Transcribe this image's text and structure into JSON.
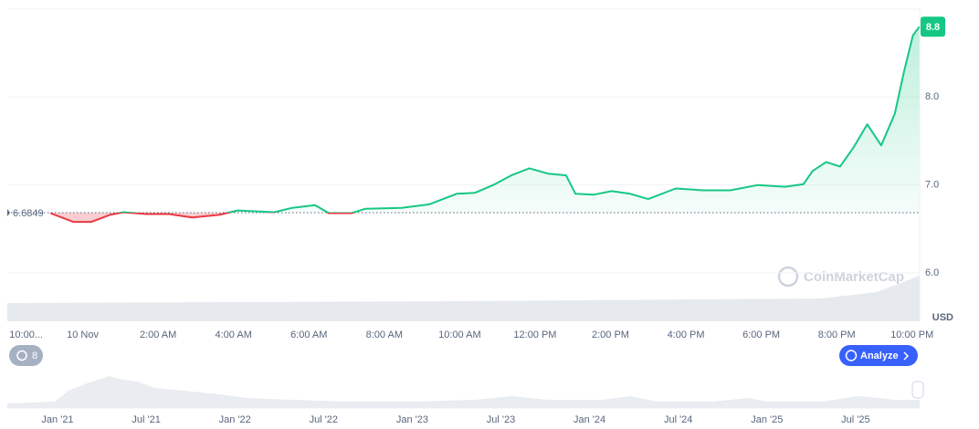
{
  "chart_data": {
    "type": "line",
    "currency": "USD",
    "watermark": "CoinMarketCap",
    "analyze_button": "Analyze",
    "history_count": 8,
    "baseline": 6.6849,
    "color": "#16c784",
    "down_color": "#ea3943",
    "xlim": [
      -2,
      22.2
    ],
    "ylim": [
      5.45,
      9.0
    ],
    "xticks": [
      {
        "value": -1.5,
        "label": "10:00..."
      },
      {
        "value": 0,
        "label": "10 Nov"
      },
      {
        "value": 2,
        "label": "2:00 AM"
      },
      {
        "value": 4,
        "label": "4:00 AM"
      },
      {
        "value": 6,
        "label": "6:00 AM"
      },
      {
        "value": 8,
        "label": "8:00 AM"
      },
      {
        "value": 10,
        "label": "10:00 AM"
      },
      {
        "value": 12,
        "label": "12:00 PM"
      },
      {
        "value": 14,
        "label": "2:00 PM"
      },
      {
        "value": 16,
        "label": "4:00 PM"
      },
      {
        "value": 18,
        "label": "6:00 PM"
      },
      {
        "value": 20,
        "label": "8:00 PM"
      },
      {
        "value": 22,
        "label": "10:00 PM"
      }
    ],
    "yticks": [
      {
        "value": 6,
        "label": "6.0"
      },
      {
        "value": 7,
        "label": "7.0"
      },
      {
        "value": 8,
        "label": "8.0"
      }
    ],
    "x": [
      -0.86,
      -0.25,
      0.23,
      0.72,
      1.08,
      1.69,
      2.29,
      2.9,
      3.62,
      4.11,
      5.08,
      5.56,
      6.16,
      6.53,
      7.13,
      7.5,
      8.46,
      9.19,
      9.92,
      10.4,
      10.89,
      11.37,
      11.85,
      12.34,
      12.82,
      13.07,
      13.55,
      14.03,
      14.52,
      15.0,
      15.73,
      16.45,
      17.18,
      17.91,
      18.63,
      19.12,
      19.36,
      19.72,
      20.09,
      20.45,
      20.81,
      21.18,
      21.54,
      21.78,
      22.02,
      22.19
    ],
    "values": [
      6.68,
      6.58,
      6.58,
      6.66,
      6.69,
      6.67,
      6.67,
      6.63,
      6.66,
      6.71,
      6.69,
      6.74,
      6.77,
      6.68,
      6.68,
      6.73,
      6.74,
      6.78,
      6.9,
      6.91,
      7.0,
      7.11,
      7.19,
      7.13,
      7.11,
      6.9,
      6.89,
      6.93,
      6.9,
      6.84,
      6.96,
      6.94,
      6.94,
      7.0,
      6.98,
      7.01,
      7.16,
      7.26,
      7.21,
      7.43,
      7.69,
      7.45,
      7.81,
      8.28,
      8.7,
      8.8
    ],
    "navigator_labels": [
      "Jan '21",
      "Jul '21",
      "Jan '22",
      "Jul '22",
      "Jan '23",
      "Jul '23",
      "Jan '24",
      "Jul '24",
      "Jan '25",
      "Jul '25"
    ]
  }
}
